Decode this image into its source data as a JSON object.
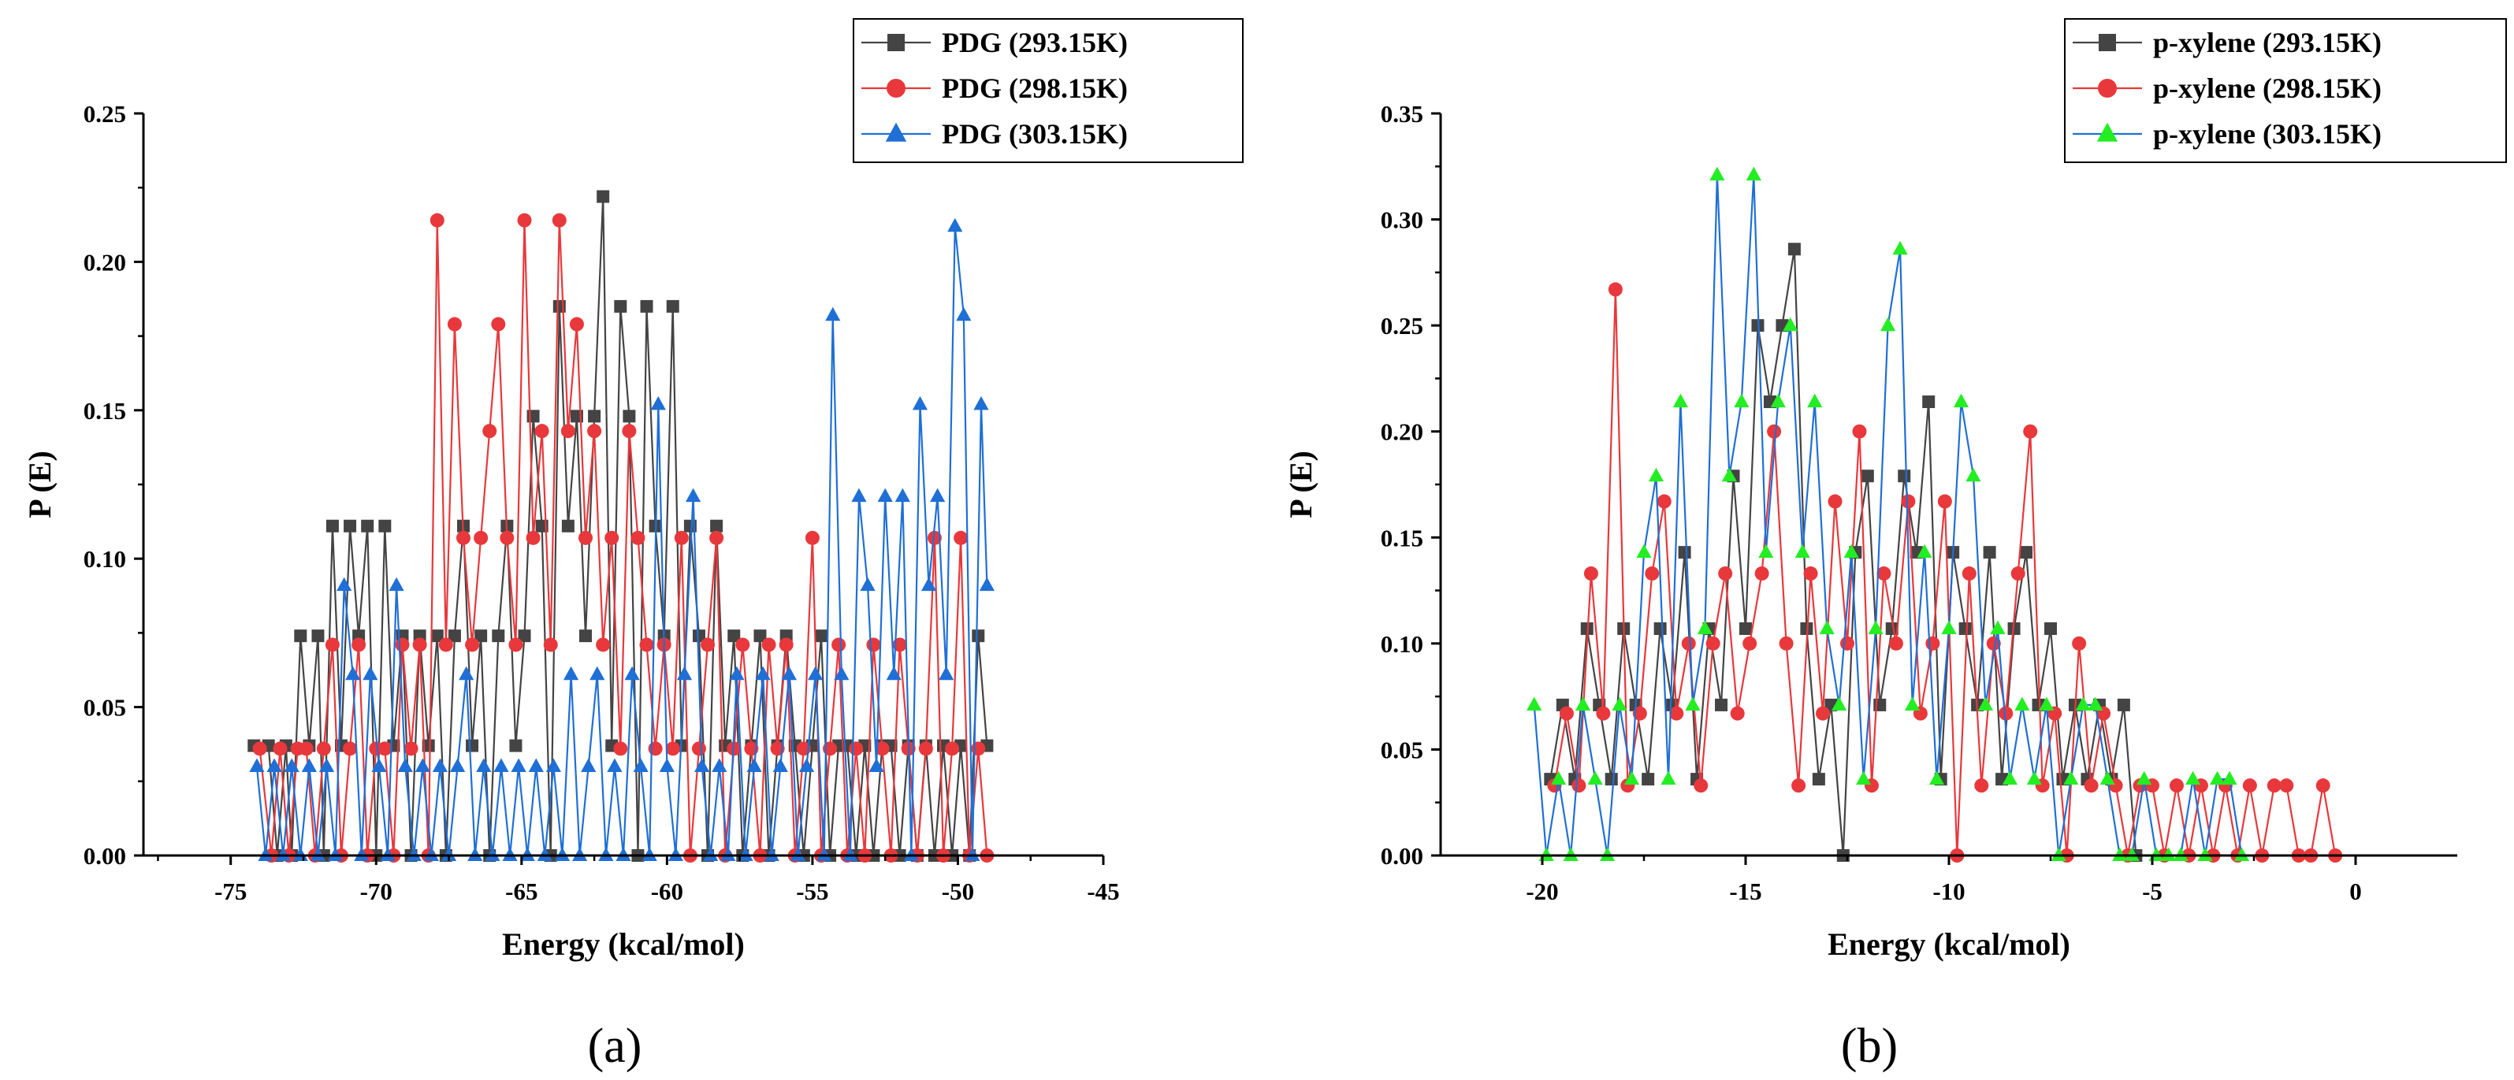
{
  "colors": {
    "series1": "#444444",
    "series2": "#e8383b",
    "series3": "#1f6fd6",
    "series3_b_marker": "#22ee22"
  },
  "chart_data": [
    {
      "panel": "(a)",
      "type": "line",
      "xlabel": "Energy (kcal/mol)",
      "ylabel": "P (E)",
      "xlim": [
        -78,
        -45
      ],
      "ylim": [
        0,
        0.25
      ],
      "xticks": [
        "-75",
        "-70",
        "-65",
        "-60",
        "-55",
        "-50",
        "-45"
      ],
      "yticks": [
        "0.00",
        "0.05",
        "0.10",
        "0.15",
        "0.20",
        "0.25"
      ],
      "legend_position": "top-right",
      "series": [
        {
          "name": "PDG (293.15K)",
          "marker": "square",
          "x": [
            -74.2,
            -73.7,
            -73.4,
            -73.1,
            -72.9,
            -72.6,
            -72.3,
            -72.0,
            -71.8,
            -71.5,
            -71.2,
            -70.9,
            -70.6,
            -70.3,
            -70.0,
            -69.7,
            -69.4,
            -69.1,
            -68.8,
            -68.5,
            -68.2,
            -67.9,
            -67.6,
            -67.3,
            -67.0,
            -66.7,
            -66.4,
            -66.1,
            -65.8,
            -65.5,
            -65.2,
            -64.9,
            -64.6,
            -64.3,
            -64.0,
            -63.7,
            -63.4,
            -63.1,
            -62.8,
            -62.5,
            -62.2,
            -61.9,
            -61.6,
            -61.3,
            -61.0,
            -60.7,
            -60.4,
            -60.1,
            -59.8,
            -59.5,
            -59.2,
            -58.9,
            -58.6,
            -58.3,
            -58.0,
            -57.7,
            -57.4,
            -57.1,
            -56.8,
            -56.5,
            -56.2,
            -55.9,
            -55.6,
            -55.3,
            -55.0,
            -54.7,
            -54.4,
            -54.1,
            -53.8,
            -53.5,
            -53.2,
            -52.9,
            -52.6,
            -52.3,
            -52.0,
            -51.7,
            -51.4,
            -51.1,
            -50.8,
            -50.5,
            -50.2,
            -49.9,
            -49.6,
            -49.3,
            -49.0
          ],
          "values": [
            0.037,
            0.037,
            0.0,
            0.037,
            0.0,
            0.074,
            0.037,
            0.074,
            0.0,
            0.111,
            0.037,
            0.111,
            0.074,
            0.111,
            0.0,
            0.111,
            0.037,
            0.074,
            0.0,
            0.074,
            0.037,
            0.074,
            0.0,
            0.074,
            0.111,
            0.037,
            0.074,
            0.0,
            0.074,
            0.111,
            0.037,
            0.074,
            0.148,
            0.111,
            0.0,
            0.185,
            0.111,
            0.148,
            0.074,
            0.148,
            0.222,
            0.037,
            0.185,
            0.148,
            0.0,
            0.185,
            0.111,
            0.074,
            0.185,
            0.037,
            0.111,
            0.074,
            0.0,
            0.111,
            0.037,
            0.074,
            0.0,
            0.037,
            0.074,
            0.0,
            0.037,
            0.074,
            0.037,
            0.0,
            0.037,
            0.074,
            0.0,
            0.037,
            0.037,
            0.0,
            0.037,
            0.0,
            0.037,
            0.037,
            0.0,
            0.037,
            0.0,
            0.037,
            0.0,
            0.037,
            0.0,
            0.037,
            0.0,
            0.074,
            0.037
          ]
        },
        {
          "name": "PDG (298.15K)",
          "marker": "circle",
          "x": [
            -74.0,
            -73.6,
            -73.3,
            -73.0,
            -72.7,
            -72.4,
            -72.1,
            -71.8,
            -71.5,
            -71.2,
            -70.9,
            -70.6,
            -70.3,
            -70.0,
            -69.7,
            -69.4,
            -69.1,
            -68.8,
            -68.5,
            -68.2,
            -67.9,
            -67.6,
            -67.3,
            -67.0,
            -66.7,
            -66.4,
            -66.1,
            -65.8,
            -65.5,
            -65.2,
            -64.9,
            -64.6,
            -64.3,
            -64.0,
            -63.7,
            -63.4,
            -63.1,
            -62.8,
            -62.5,
            -62.2,
            -61.9,
            -61.6,
            -61.3,
            -61.0,
            -60.7,
            -60.4,
            -60.1,
            -59.8,
            -59.5,
            -59.2,
            -58.9,
            -58.6,
            -58.3,
            -58.0,
            -57.7,
            -57.4,
            -57.1,
            -56.8,
            -56.5,
            -56.2,
            -55.9,
            -55.6,
            -55.3,
            -55.0,
            -54.7,
            -54.4,
            -54.1,
            -53.8,
            -53.5,
            -53.2,
            -52.9,
            -52.6,
            -52.3,
            -52.0,
            -51.7,
            -51.4,
            -51.1,
            -50.8,
            -50.5,
            -50.2,
            -49.9,
            -49.6,
            -49.3,
            -49.0
          ],
          "values": [
            0.036,
            0.0,
            0.036,
            0.0,
            0.036,
            0.036,
            0.0,
            0.036,
            0.071,
            0.0,
            0.036,
            0.071,
            0.0,
            0.036,
            0.036,
            0.0,
            0.071,
            0.036,
            0.071,
            0.0,
            0.214,
            0.071,
            0.179,
            0.107,
            0.071,
            0.107,
            0.143,
            0.179,
            0.107,
            0.071,
            0.214,
            0.107,
            0.143,
            0.071,
            0.214,
            0.143,
            0.179,
            0.107,
            0.143,
            0.071,
            0.107,
            0.036,
            0.143,
            0.107,
            0.071,
            0.036,
            0.071,
            0.036,
            0.107,
            0.0,
            0.036,
            0.071,
            0.107,
            0.0,
            0.036,
            0.071,
            0.036,
            0.0,
            0.071,
            0.036,
            0.071,
            0.0,
            0.036,
            0.107,
            0.0,
            0.036,
            0.071,
            0.0,
            0.036,
            0.0,
            0.071,
            0.036,
            0.0,
            0.071,
            0.036,
            0.0,
            0.036,
            0.107,
            0.0,
            0.036,
            0.107,
            0.0,
            0.036,
            0.0
          ]
        },
        {
          "name": "PDG (303.15K)",
          "marker": "triangle",
          "x": [
            -74.1,
            -73.8,
            -73.5,
            -73.2,
            -72.9,
            -72.6,
            -72.3,
            -72.0,
            -71.7,
            -71.4,
            -71.1,
            -70.8,
            -70.5,
            -70.2,
            -69.9,
            -69.6,
            -69.3,
            -69.0,
            -68.7,
            -68.4,
            -68.1,
            -67.8,
            -67.5,
            -67.2,
            -66.9,
            -66.6,
            -66.3,
            -66.0,
            -65.7,
            -65.4,
            -65.1,
            -64.8,
            -64.5,
            -64.2,
            -63.9,
            -63.6,
            -63.3,
            -63.0,
            -62.7,
            -62.4,
            -62.1,
            -61.8,
            -61.5,
            -61.2,
            -60.9,
            -60.6,
            -60.3,
            -60.0,
            -59.7,
            -59.4,
            -59.1,
            -58.8,
            -58.5,
            -58.2,
            -57.9,
            -57.6,
            -57.3,
            -57.0,
            -56.7,
            -56.4,
            -56.1,
            -55.8,
            -55.5,
            -55.2,
            -54.9,
            -54.6,
            -54.3,
            -54.0,
            -53.7,
            -53.4,
            -53.1,
            -52.8,
            -52.5,
            -52.2,
            -51.9,
            -51.6,
            -51.3,
            -51.0,
            -50.7,
            -50.4,
            -50.1,
            -49.8,
            -49.5,
            -49.2,
            -49.0
          ],
          "values": [
            0.03,
            0.0,
            0.03,
            0.0,
            0.03,
            0.0,
            0.03,
            0.0,
            0.03,
            0.0,
            0.091,
            0.061,
            0.0,
            0.061,
            0.03,
            0.0,
            0.091,
            0.03,
            0.0,
            0.03,
            0.0,
            0.03,
            0.0,
            0.03,
            0.061,
            0.0,
            0.03,
            0.0,
            0.03,
            0.0,
            0.03,
            0.0,
            0.03,
            0.0,
            0.03,
            0.0,
            0.061,
            0.0,
            0.03,
            0.061,
            0.0,
            0.03,
            0.0,
            0.061,
            0.03,
            0.0,
            0.152,
            0.03,
            0.0,
            0.061,
            0.121,
            0.03,
            0.0,
            0.03,
            0.0,
            0.061,
            0.0,
            0.03,
            0.061,
            0.0,
            0.03,
            0.061,
            0.0,
            0.03,
            0.061,
            0.0,
            0.182,
            0.061,
            0.0,
            0.121,
            0.091,
            0.03,
            0.121,
            0.061,
            0.121,
            0.0,
            0.152,
            0.091,
            0.121,
            0.061,
            0.212,
            0.182,
            0.0,
            0.152,
            0.091
          ]
        }
      ]
    },
    {
      "panel": "(b)",
      "type": "line",
      "xlabel": "Energy (kcal/mol)",
      "ylabel": "P (E)",
      "xlim": [
        -22.5,
        2.5
      ],
      "ylim": [
        0,
        0.35
      ],
      "xticks": [
        "-20",
        "-15",
        "-10",
        "-5",
        "0"
      ],
      "yticks": [
        "0.00",
        "0.05",
        "0.10",
        "0.15",
        "0.20",
        "0.25",
        "0.30",
        "0.35"
      ],
      "legend_position": "top-right",
      "series": [
        {
          "name": "p-xylene (293.15K)",
          "marker": "square",
          "x": [
            -19.8,
            -19.5,
            -19.2,
            -18.9,
            -18.6,
            -18.3,
            -18.0,
            -17.7,
            -17.4,
            -17.1,
            -16.8,
            -16.5,
            -16.2,
            -15.9,
            -15.6,
            -15.3,
            -15.0,
            -14.7,
            -14.4,
            -14.1,
            -13.8,
            -13.5,
            -13.2,
            -12.9,
            -12.6,
            -12.3,
            -12.0,
            -11.7,
            -11.4,
            -11.1,
            -10.8,
            -10.5,
            -10.2,
            -9.9,
            -9.6,
            -9.3,
            -9.0,
            -8.7,
            -8.4,
            -8.1,
            -7.8,
            -7.5,
            -7.2,
            -6.9,
            -6.6,
            -6.3,
            -6.0,
            -5.7,
            -5.4
          ],
          "values": [
            0.036,
            0.071,
            0.036,
            0.107,
            0.071,
            0.036,
            0.107,
            0.071,
            0.036,
            0.107,
            0.071,
            0.143,
            0.036,
            0.107,
            0.071,
            0.179,
            0.107,
            0.25,
            0.214,
            0.25,
            0.286,
            0.107,
            0.036,
            0.071,
            0.0,
            0.143,
            0.179,
            0.071,
            0.107,
            0.179,
            0.143,
            0.214,
            0.036,
            0.143,
            0.107,
            0.071,
            0.143,
            0.036,
            0.107,
            0.143,
            0.071,
            0.107,
            0.036,
            0.071,
            0.036,
            0.071,
            0.036,
            0.071,
            0.0
          ]
        },
        {
          "name": "p-xylene (298.15K)",
          "marker": "circle",
          "x": [
            -19.7,
            -19.4,
            -19.1,
            -18.8,
            -18.5,
            -18.2,
            -17.9,
            -17.6,
            -17.3,
            -17.0,
            -16.7,
            -16.4,
            -16.1,
            -15.8,
            -15.5,
            -15.2,
            -14.9,
            -14.6,
            -14.3,
            -14.0,
            -13.7,
            -13.4,
            -13.1,
            -12.8,
            -12.5,
            -12.2,
            -11.9,
            -11.6,
            -11.3,
            -11.0,
            -10.7,
            -10.4,
            -10.1,
            -9.8,
            -9.5,
            -9.2,
            -8.9,
            -8.6,
            -8.3,
            -8.0,
            -7.7,
            -7.4,
            -7.1,
            -6.8,
            -6.5,
            -6.2,
            -5.9,
            -5.6,
            -5.3,
            -5.0,
            -4.7,
            -4.4,
            -4.1,
            -3.8,
            -3.5,
            -3.2,
            -2.9,
            -2.6,
            -2.3,
            -2.0,
            -1.7,
            -1.4,
            -1.1,
            -0.8,
            -0.5
          ],
          "values": [
            0.033,
            0.067,
            0.033,
            0.133,
            0.067,
            0.267,
            0.033,
            0.067,
            0.133,
            0.167,
            0.067,
            0.1,
            0.033,
            0.1,
            0.133,
            0.067,
            0.1,
            0.133,
            0.2,
            0.1,
            0.033,
            0.133,
            0.067,
            0.167,
            0.1,
            0.2,
            0.033,
            0.133,
            0.1,
            0.167,
            0.067,
            0.1,
            0.167,
            0.0,
            0.133,
            0.033,
            0.1,
            0.067,
            0.133,
            0.2,
            0.033,
            0.067,
            0.0,
            0.1,
            0.033,
            0.067,
            0.033,
            0.0,
            0.033,
            0.033,
            0.0,
            0.033,
            0.0,
            0.033,
            0.0,
            0.033,
            0.0,
            0.033,
            0.0,
            0.033,
            0.033,
            0.0,
            0.0,
            0.033,
            0.0
          ]
        },
        {
          "name": "p-xylene (303.15K)",
          "marker": "triangle",
          "x": [
            -20.2,
            -19.9,
            -19.6,
            -19.3,
            -19.0,
            -18.7,
            -18.4,
            -18.1,
            -17.8,
            -17.5,
            -17.2,
            -16.9,
            -16.6,
            -16.3,
            -16.0,
            -15.7,
            -15.4,
            -15.1,
            -14.8,
            -14.5,
            -14.2,
            -13.9,
            -13.6,
            -13.3,
            -13.0,
            -12.7,
            -12.4,
            -12.1,
            -11.8,
            -11.5,
            -11.2,
            -10.9,
            -10.6,
            -10.3,
            -10.0,
            -9.7,
            -9.4,
            -9.1,
            -8.8,
            -8.5,
            -8.2,
            -7.9,
            -7.6,
            -7.3,
            -7.0,
            -6.7,
            -6.4,
            -6.1,
            -5.8,
            -5.5,
            -5.2,
            -4.9,
            -4.6,
            -4.3,
            -4.0,
            -3.7,
            -3.4,
            -3.1,
            -2.8
          ],
          "values": [
            0.071,
            0.0,
            0.036,
            0.0,
            0.071,
            0.036,
            0.0,
            0.071,
            0.036,
            0.143,
            0.179,
            0.036,
            0.214,
            0.071,
            0.107,
            0.321,
            0.179,
            0.214,
            0.321,
            0.143,
            0.214,
            0.25,
            0.143,
            0.214,
            0.107,
            0.071,
            0.143,
            0.036,
            0.107,
            0.25,
            0.286,
            0.071,
            0.143,
            0.036,
            0.107,
            0.214,
            0.179,
            0.071,
            0.107,
            0.036,
            0.071,
            0.036,
            0.071,
            0.0,
            0.036,
            0.071,
            0.071,
            0.036,
            0.0,
            0.0,
            0.036,
            0.0,
            0.0,
            0.0,
            0.036,
            0.0,
            0.036,
            0.036,
            0.0
          ]
        }
      ]
    }
  ]
}
